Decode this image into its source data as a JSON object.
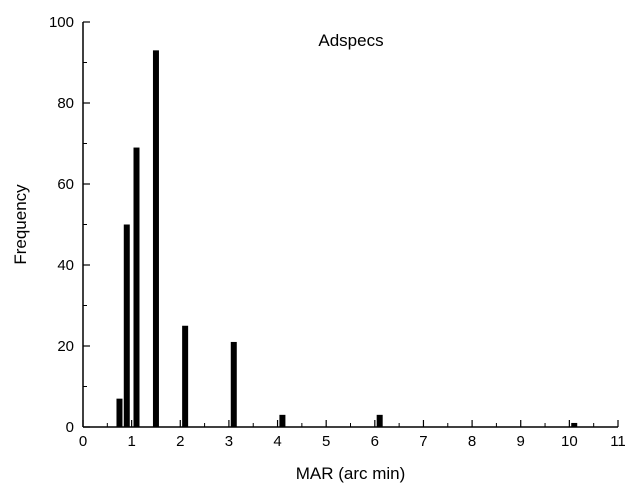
{
  "chart_data": {
    "type": "bar",
    "title": "Adspecs",
    "xlabel": "MAR (arc min)",
    "ylabel": "Frequency",
    "xlim": [
      0,
      11
    ],
    "ylim": [
      0,
      100
    ],
    "x_ticks": [
      0,
      1,
      2,
      3,
      4,
      5,
      6,
      7,
      8,
      9,
      10,
      11
    ],
    "y_ticks": [
      0,
      20,
      40,
      60,
      80,
      100
    ],
    "grid": false,
    "bar_color": "#000000",
    "x": [
      0.75,
      0.9,
      1.1,
      1.5,
      2.1,
      3.1,
      4.1,
      6.1,
      10.1
    ],
    "values": [
      7,
      50,
      69,
      93,
      25,
      21,
      3,
      3,
      1
    ]
  }
}
